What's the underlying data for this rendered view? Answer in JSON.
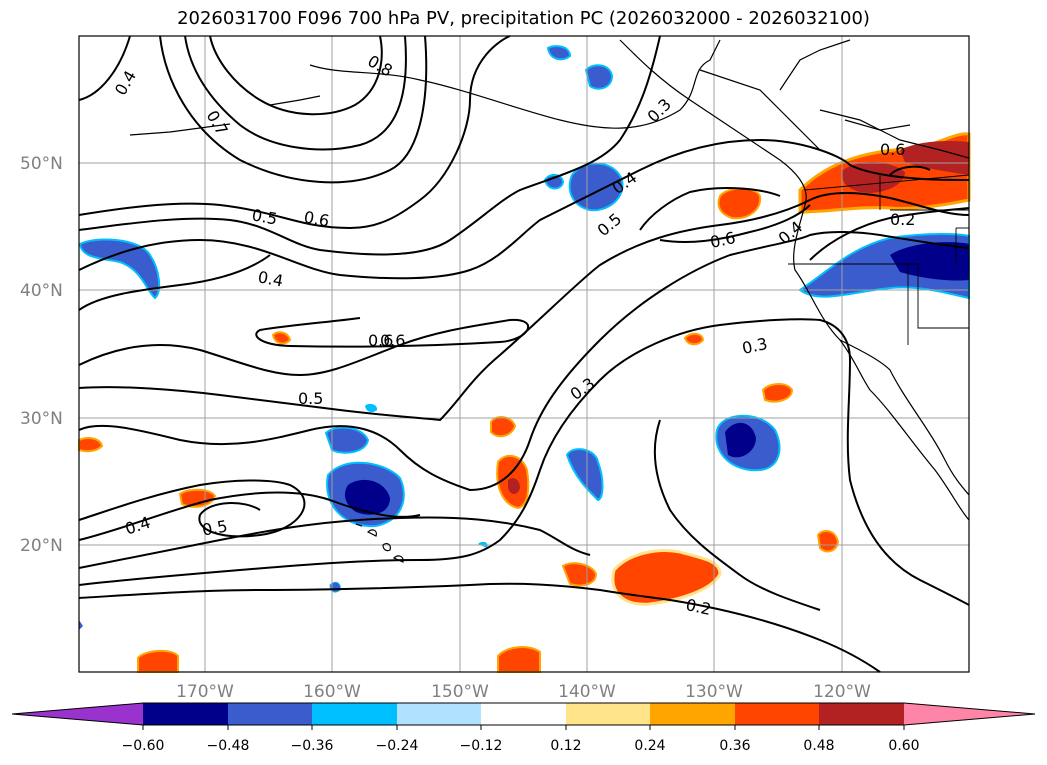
{
  "title": "2026031700 F096 700 hPa PV, precipitation PC (2026032000 - 2026032100)",
  "lat_labels": [
    "50°N",
    "40°N",
    "30°N",
    "20°N"
  ],
  "lon_labels": [
    "170°W",
    "160°W",
    "150°W",
    "140°W",
    "130°W",
    "120°W"
  ],
  "contour_labels": [
    "0.4",
    "0.8",
    "0.7",
    "0.3",
    "0.6",
    "0.4",
    "0.5",
    "0.6",
    "0.4",
    "0.5",
    "0.6",
    "0.6",
    "0.2",
    "0.4",
    "0.6",
    "0.3",
    "0.5",
    "0.3",
    "0.4",
    "0.5",
    "0.2"
  ],
  "colorbar": {
    "ticks": [
      "−0.60",
      "−0.48",
      "−0.36",
      "−0.24",
      "−0.12",
      "0.12",
      "0.24",
      "0.36",
      "0.48",
      "0.60"
    ],
    "colors": [
      "#9a32cd",
      "#00008b",
      "#3a5ccc",
      "#00bfff",
      "#b0e2ff",
      "#ffffff",
      "#ffe48a",
      "#ffa500",
      "#ff4500",
      "#b22222",
      "#ff85a8"
    ]
  },
  "colors": {
    "contour": "#000000",
    "grid": "#a0a0a0",
    "coast": "#000000"
  }
}
